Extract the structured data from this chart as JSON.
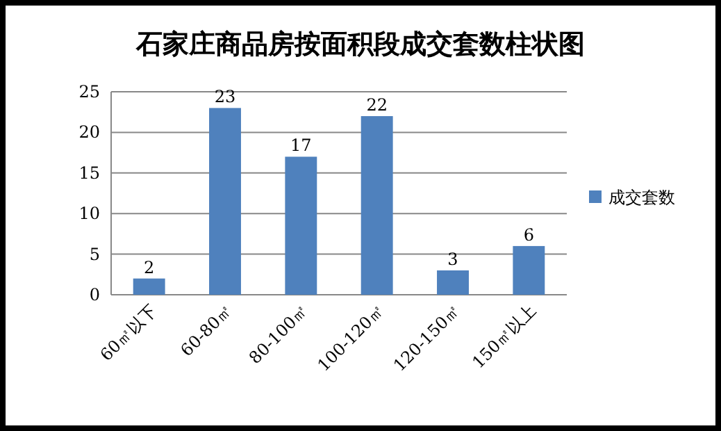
{
  "chart_data": {
    "type": "bar",
    "title": "石家庄商品房按面积段成交套数柱状图",
    "categories": [
      "60㎡以下",
      "60-80㎡",
      "80-100㎡",
      "100-120㎡",
      "120-150㎡",
      "150㎡以上"
    ],
    "series": [
      {
        "name": "成交套数",
        "color": "#4f81bd",
        "values": [
          2,
          23,
          17,
          22,
          3,
          6
        ]
      }
    ],
    "ylim": [
      0,
      25
    ],
    "yticks": [
      0,
      5,
      10,
      15,
      20,
      25
    ],
    "grid": "y",
    "legend": "right",
    "data_labels": true
  }
}
